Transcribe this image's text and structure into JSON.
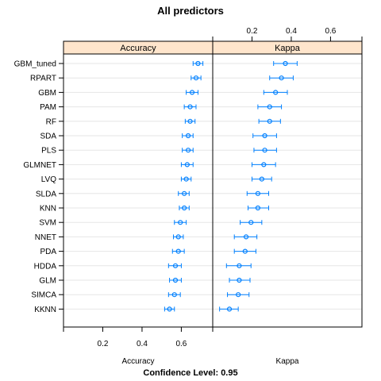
{
  "chart_data": {
    "type": "dotplot",
    "title": "All predictors",
    "caption": "Confidence Level: 0.95",
    "x_ticks": [
      0.2,
      0.4,
      0.6
    ],
    "xlim": [
      0.0,
      0.76
    ],
    "models": [
      "GBM_tuned",
      "RPART",
      "GBM",
      "PAM",
      "RF",
      "SDA",
      "PLS",
      "GLMNET",
      "LVQ",
      "SLDA",
      "KNN",
      "SVM",
      "NNET",
      "PDA",
      "HDDA",
      "GLM",
      "SIMCA",
      "KKNN"
    ],
    "panels": [
      {
        "name": "Accuracy",
        "xlabel": "Accuracy",
        "estimate": [
          0.685,
          0.675,
          0.655,
          0.645,
          0.645,
          0.635,
          0.635,
          0.63,
          0.625,
          0.615,
          0.615,
          0.595,
          0.585,
          0.585,
          0.57,
          0.57,
          0.565,
          0.54
        ],
        "lower": [
          0.66,
          0.65,
          0.625,
          0.615,
          0.62,
          0.605,
          0.605,
          0.6,
          0.6,
          0.585,
          0.59,
          0.565,
          0.56,
          0.555,
          0.535,
          0.54,
          0.535,
          0.515
        ],
        "upper": [
          0.71,
          0.7,
          0.685,
          0.675,
          0.67,
          0.66,
          0.66,
          0.66,
          0.65,
          0.64,
          0.64,
          0.625,
          0.61,
          0.615,
          0.6,
          0.6,
          0.595,
          0.565
        ]
      },
      {
        "name": "Kappa",
        "xlabel": "Kappa",
        "estimate": [
          0.37,
          0.35,
          0.32,
          0.29,
          0.29,
          0.265,
          0.265,
          0.26,
          0.25,
          0.23,
          0.23,
          0.195,
          0.17,
          0.165,
          0.135,
          0.135,
          0.13,
          0.085
        ],
        "lower": [
          0.31,
          0.29,
          0.26,
          0.23,
          0.235,
          0.205,
          0.21,
          0.2,
          0.2,
          0.175,
          0.18,
          0.14,
          0.11,
          0.11,
          0.07,
          0.085,
          0.075,
          0.035
        ],
        "upper": [
          0.43,
          0.41,
          0.38,
          0.35,
          0.345,
          0.325,
          0.325,
          0.32,
          0.3,
          0.285,
          0.285,
          0.25,
          0.225,
          0.22,
          0.195,
          0.19,
          0.185,
          0.13
        ]
      }
    ],
    "colors": {
      "point": "#0080ff",
      "strip": "#ffe5cc",
      "grid": "#e6e6e6",
      "frame": "#000000"
    }
  }
}
